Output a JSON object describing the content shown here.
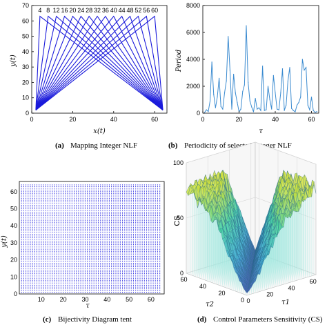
{
  "chart_data": [
    {
      "type": "line",
      "caption_tag": "(a)",
      "caption_text": "Mapping Integer NLF",
      "xlabel": "x(t)",
      "ylabel": "y(t)",
      "xlim": [
        0,
        66
      ],
      "ylim": [
        0,
        70
      ],
      "xticks": [
        "0",
        "20",
        "40",
        "60"
      ],
      "yticks": [
        "0",
        "10",
        "20",
        "30",
        "40",
        "50",
        "60",
        "70"
      ],
      "grid": false,
      "line_color": "#1a1adb",
      "top_labels": [
        "4",
        "8",
        "12",
        "16",
        "20",
        "24",
        "28",
        "32",
        "36",
        "40",
        "44",
        "48",
        "52",
        "56",
        "60"
      ],
      "series_description_values": {
        "peaks_x": [
          4,
          8,
          12,
          16,
          20,
          24,
          28,
          32,
          36,
          40,
          44,
          48,
          52,
          56,
          60
        ],
        "peak_y": 63,
        "baseline_y_left": 2,
        "baseline_y_right": 2,
        "x_min": 2,
        "x_max": 64
      }
    },
    {
      "type": "line",
      "caption_tag": "(b)",
      "caption_text": "Periodicity of selected Integer NLF",
      "xlabel": "τ",
      "ylabel": "Period",
      "xlim": [
        0,
        64
      ],
      "ylim": [
        0,
        8000
      ],
      "xticks": [
        "0",
        "20",
        "40",
        "60"
      ],
      "yticks": [
        "0",
        "2000",
        "4000",
        "6000",
        "8000"
      ],
      "grid": false,
      "line_color": "#3b8bd0",
      "x": [
        1,
        2,
        3,
        4,
        5,
        6,
        7,
        8,
        9,
        10,
        11,
        12,
        13,
        14,
        15,
        16,
        17,
        18,
        19,
        20,
        21,
        22,
        23,
        24,
        25,
        26,
        27,
        28,
        29,
        30,
        31,
        32,
        33,
        34,
        35,
        36,
        37,
        38,
        39,
        40,
        41,
        42,
        43,
        44,
        45,
        46,
        47,
        48,
        49,
        50,
        51,
        52,
        53,
        54,
        55,
        56,
        57,
        58,
        59,
        60,
        61,
        62,
        63
      ],
      "values": [
        60,
        250,
        120,
        900,
        3800,
        1400,
        400,
        1200,
        2600,
        500,
        300,
        1500,
        2400,
        5700,
        3200,
        300,
        2900,
        1500,
        800,
        100,
        300,
        1600,
        2100,
        6500,
        2300,
        900,
        450,
        100,
        1100,
        300,
        400,
        200,
        3500,
        200,
        250,
        2000,
        1000,
        300,
        2800,
        1500,
        300,
        250,
        1500,
        3300,
        200,
        600,
        2400,
        3400,
        350,
        200,
        100,
        600,
        800,
        1200,
        4000,
        3200,
        3400,
        600,
        250,
        1200,
        200,
        60,
        120
      ]
    },
    {
      "type": "scatter",
      "caption_tag": "(c)",
      "caption_text": "Bijectivity Diagram tent",
      "xlabel": "τ",
      "ylabel": "y(t)",
      "xlim": [
        0,
        66
      ],
      "ylim": [
        0,
        66
      ],
      "xticks": [
        "10",
        "20",
        "30",
        "40",
        "50",
        "60"
      ],
      "yticks": [
        "0",
        "10",
        "20",
        "30",
        "40",
        "50",
        "60"
      ],
      "grid": false,
      "point_color": "#2a2ae0",
      "points_rule": "one point per (τ, y) for τ = 1..64, y = 1..64",
      "tau_range": [
        1,
        64
      ],
      "y_range": [
        1,
        64
      ]
    },
    {
      "type": "surface",
      "caption_tag": "(d)",
      "caption_text": "Control Parameters Sensitivity (CS)",
      "zlabel": "CS",
      "xlabel": "τ1",
      "ylabel": "τ2",
      "zticks": [
        "0",
        "50",
        "100"
      ],
      "xticks": [
        "0",
        "20",
        "40",
        "60"
      ],
      "yticks": [
        "0",
        "20",
        "40",
        "60"
      ],
      "xlim": [
        0,
        64
      ],
      "ylim": [
        0,
        64
      ],
      "zlim": [
        0,
        100
      ],
      "grid": true,
      "colormap": [
        "#2f3aa8",
        "#3aa8d0",
        "#46d0a0",
        "#c8e040",
        "#f0e040"
      ],
      "surface_rule": "CS is high (≈70–100) at the corners and edges, dips to ≈0 along the diagonal τ1 = τ2",
      "corner_values": {
        "t1_0_t2_0": 5,
        "t1_64_t2_0": 95,
        "t1_0_t2_64": 95,
        "t1_64_t2_64": 100
      },
      "diagonal_value": 2
    }
  ]
}
